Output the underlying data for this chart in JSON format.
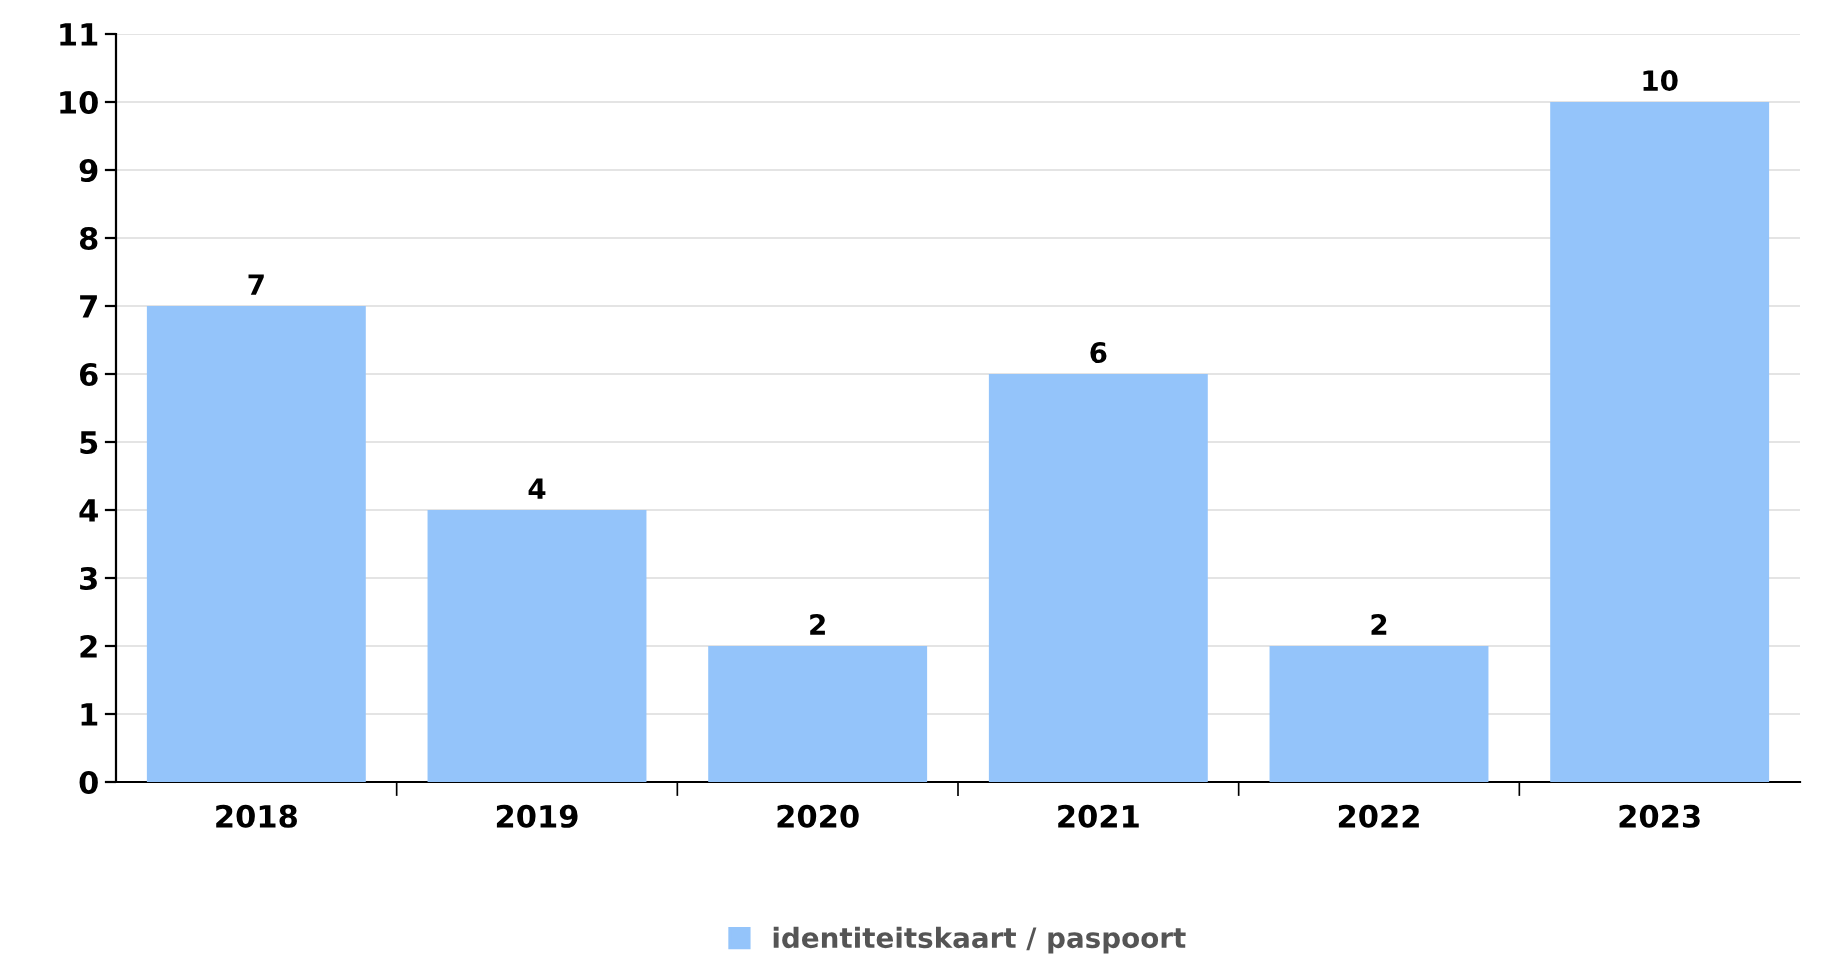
{
  "chart_data": {
    "type": "bar",
    "categories": [
      "2018",
      "2019",
      "2020",
      "2021",
      "2022",
      "2023"
    ],
    "series": [
      {
        "name": "identiteitskaart / paspoort",
        "color": "#94c4fa",
        "values": [
          7,
          4,
          2,
          6,
          2,
          10
        ]
      }
    ],
    "ylim": [
      0,
      11
    ],
    "yticks": [
      0,
      1,
      2,
      3,
      4,
      5,
      6,
      7,
      8,
      9,
      10,
      11
    ],
    "grid": "y",
    "legend": "bottom",
    "data_labels": true
  }
}
